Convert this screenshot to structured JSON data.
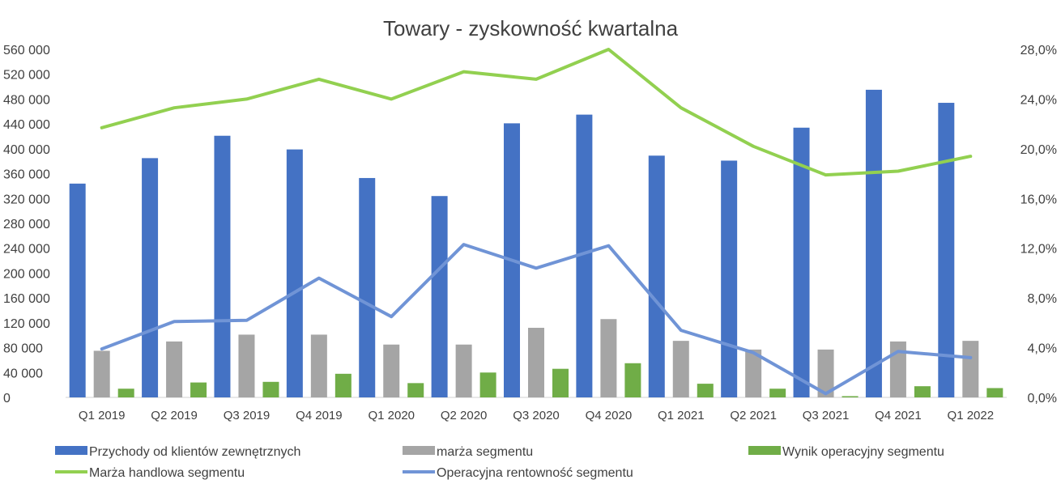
{
  "chart_data": {
    "type": "bar",
    "title": "Towary - zyskowność kwartalna",
    "categories": [
      "Q1 2019",
      "Q2 2019",
      "Q3 2019",
      "Q4 2019",
      "Q1 2020",
      "Q2 2020",
      "Q3 2020",
      "Q4 2020",
      "Q1 2021",
      "Q2 2021",
      "Q3 2021",
      "Q4 2021",
      "Q1 2022"
    ],
    "left_axis": {
      "ylim": [
        0,
        560000
      ],
      "ticks": [
        "0",
        "40 000",
        "80 000",
        "120 000",
        "160 000",
        "200 000",
        "240 000",
        "280 000",
        "320 000",
        "360 000",
        "400 000",
        "440 000",
        "480 000",
        "520 000",
        "560 000"
      ]
    },
    "right_axis": {
      "ylim": [
        0,
        28
      ],
      "ticks": [
        "0,0%",
        "4,0%",
        "8,0%",
        "12,0%",
        "16,0%",
        "20,0%",
        "24,0%",
        "28,0%"
      ]
    },
    "bar_series": [
      {
        "name": "Przychody od klientów zewnętrznych",
        "color": "#4472C4",
        "axis": "left",
        "values": [
          344000,
          385000,
          421000,
          399000,
          353000,
          324000,
          441000,
          455000,
          389000,
          381000,
          434000,
          495000,
          474000
        ]
      },
      {
        "name": "marża segmentu",
        "color": "#A5A5A5",
        "axis": "left",
        "values": [
          75000,
          90000,
          101000,
          101000,
          85000,
          85000,
          112000,
          126000,
          91000,
          77000,
          77000,
          90000,
          91000
        ]
      },
      {
        "name": "Wynik operacyjny segmentu",
        "color": "#70AD47",
        "axis": "left",
        "values": [
          14000,
          24000,
          25000,
          38000,
          23000,
          40000,
          46000,
          55000,
          22000,
          14000,
          2000,
          18000,
          15000
        ]
      }
    ],
    "line_series": [
      {
        "name": "Marża handlowa segmentu",
        "color": "#92D050",
        "axis": "right",
        "values": [
          21.7,
          23.3,
          24.0,
          25.6,
          24.0,
          26.2,
          25.6,
          28.0,
          23.3,
          20.2,
          17.9,
          18.2,
          19.4
        ]
      },
      {
        "name": "Operacyjna rentowność segmentu",
        "color": "#7094D6",
        "axis": "right",
        "values": [
          3.9,
          6.1,
          6.2,
          9.6,
          6.5,
          12.3,
          10.4,
          12.2,
          5.4,
          3.6,
          0.3,
          3.7,
          3.2
        ]
      }
    ],
    "legend": "bottom",
    "grid": false
  }
}
